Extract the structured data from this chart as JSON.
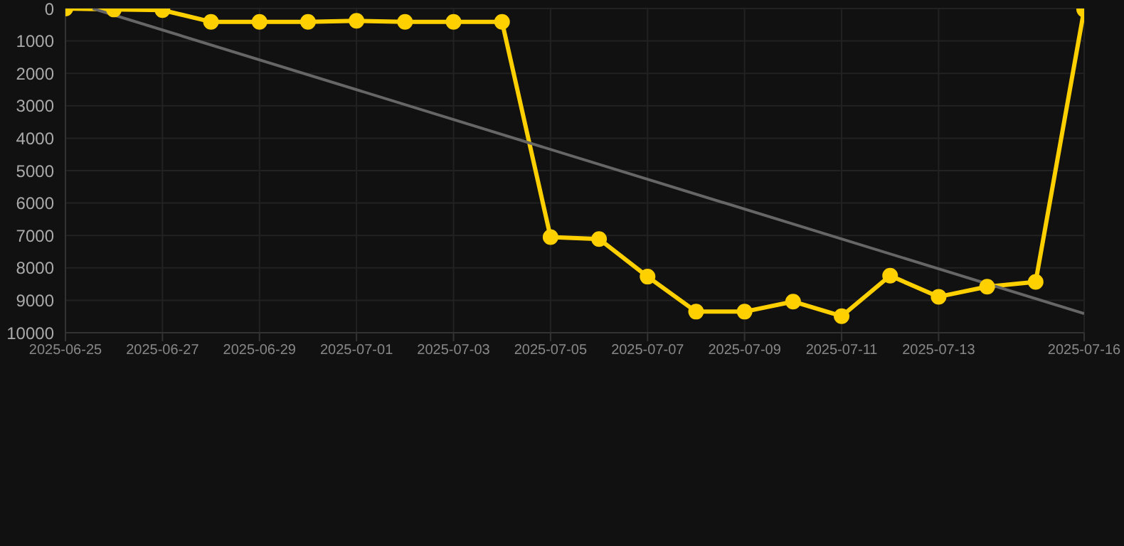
{
  "chart_data": {
    "type": "line",
    "x": [
      "2025-06-25",
      "2025-06-26",
      "2025-06-27",
      "2025-06-28",
      "2025-06-29",
      "2025-06-30",
      "2025-07-01",
      "2025-07-02",
      "2025-07-03",
      "2025-07-04",
      "2025-07-05",
      "2025-07-06",
      "2025-07-07",
      "2025-07-08",
      "2025-07-09",
      "2025-07-10",
      "2025-07-11",
      "2025-07-12",
      "2025-07-13",
      "2025-07-14",
      "2025-07-15",
      "2025-07-16"
    ],
    "series": [
      {
        "color": "#ffd000",
        "values": [
          0,
          30,
          50,
          410,
          410,
          410,
          380,
          410,
          410,
          410,
          7050,
          7110,
          8270,
          9350,
          9350,
          9040,
          9490,
          8240,
          8890,
          8580,
          8430,
          30
        ],
        "marker": "circle"
      },
      {
        "type": "line",
        "color": "#666666",
        "x": [
          "2025-06-25T13:30",
          "2025-07-16"
        ],
        "values": [
          0,
          9410
        ],
        "marker": "none"
      }
    ],
    "xlim": [
      "2025-06-25",
      "2025-07-16"
    ],
    "xticks": [
      "2025-06-25",
      "2025-06-27",
      "2025-06-29",
      "2025-07-01",
      "2025-07-03",
      "2025-07-05",
      "2025-07-07",
      "2025-07-09",
      "2025-07-11",
      "2025-07-13",
      "2025-07-16"
    ],
    "ylim": [
      10000,
      0
    ],
    "yticks": [
      0,
      1000,
      2000,
      3000,
      4000,
      5000,
      6000,
      7000,
      8000,
      9000,
      10000
    ],
    "grid": true
  }
}
